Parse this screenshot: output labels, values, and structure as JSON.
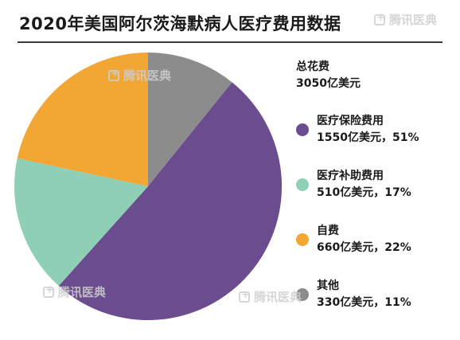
{
  "header": {
    "title": "2020年美国阿尔茨海默病人医疗费用数据"
  },
  "legend": {
    "total_label": "总花费",
    "total_value": "3050亿美元"
  },
  "watermark": {
    "text": "腾讯医典"
  },
  "chart_data": {
    "type": "pie",
    "title": "2020年美国阿尔茨海默病人医疗费用数据",
    "unit": "亿美元",
    "total": 3050,
    "start_angle_deg": 0,
    "direction": "clockwise",
    "slices": [
      {
        "name": "其他",
        "value": 330,
        "percent": 11,
        "color": "#8c8c8c",
        "label": "330亿美元，11%"
      },
      {
        "name": "医疗保险费用",
        "value": 1550,
        "percent": 51,
        "color": "#6a4c8f",
        "label": "1550亿美元，51%"
      },
      {
        "name": "医疗补助费用",
        "value": 510,
        "percent": 17,
        "color": "#8ecfb6",
        "label": "510亿美元，17%"
      },
      {
        "name": "自费",
        "value": 660,
        "percent": 22,
        "color": "#f2a634",
        "label": "660亿美元，22%"
      }
    ],
    "legend_order": [
      "医疗保险费用",
      "医疗补助费用",
      "自费",
      "其他"
    ],
    "legend_position": "right"
  }
}
